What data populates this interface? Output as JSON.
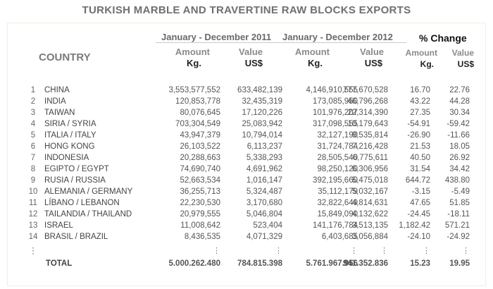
{
  "title": "TURKISH MARBLE AND TRAVERTINE RAW BLOCKS EXPORTS",
  "header": {
    "country": "COUNTRY",
    "period_2011": "January - December 2011",
    "period_2012": "January - December 2012",
    "pct_change": "% Change",
    "amount": "Amount",
    "value": "Value",
    "kg": "Kg.",
    "usd": "US$"
  },
  "rows": [
    {
      "n": "1",
      "country": "CHINA",
      "a2011": "3,553,577,552",
      "v2011": "633,482,139",
      "a2012": "4,146,910,555",
      "v2012": "777,670,528",
      "pa": "16.70",
      "pv": "22.76"
    },
    {
      "n": "2",
      "country": "INDIA",
      "a2011": "120,853,778",
      "v2011": "32,435,319",
      "a2012": "173,085,950",
      "v2012": "46,796,268",
      "pa": "43.22",
      "pv": "44.28"
    },
    {
      "n": "3",
      "country": "TAIWAN",
      "a2011": "80,076,645",
      "v2011": "17,120,226",
      "a2012": "101,976,207",
      "v2012": "22,314,390",
      "pa": "27.35",
      "pv": "30.34"
    },
    {
      "n": "4",
      "country": "SIRIA / SYRIA",
      "a2011": "703,304,549",
      "v2011": "25,083,942",
      "a2012": "317,098,555",
      "v2012": "10,179,643",
      "pa": "-54.91",
      "pv": "-59.42"
    },
    {
      "n": "5",
      "country": "ITALIA / ITALY",
      "a2011": "43,947,379",
      "v2011": "10,794,014",
      "a2012": "32,127,190",
      "v2012": "9,535,814",
      "pa": "-26.90",
      "pv": "-11.66"
    },
    {
      "n": "6",
      "country": "HONG KONG",
      "a2011": "26,103,522",
      "v2011": "6,113,237",
      "a2012": "31,724,784",
      "v2012": "7,216,428",
      "pa": "21.53",
      "pv": "18.05"
    },
    {
      "n": "7",
      "country": "INDONESIA",
      "a2011": "20,288,663",
      "v2011": "5,338,293",
      "a2012": "28,505,540",
      "v2012": "6,775,611",
      "pa": "40.50",
      "pv": "26.92"
    },
    {
      "n": "8",
      "country": "EGIPTO / EGYPT",
      "a2011": "74,690,740",
      "v2011": "4,691,962",
      "a2012": "98,250,120",
      "v2012": "6,306,956",
      "pa": "31.54",
      "pv": "34.42"
    },
    {
      "n": "9",
      "country": "RUSIA / RUSSIA",
      "a2011": "52,663,534",
      "v2011": "1,016,147",
      "a2012": "392,195,660",
      "v2012": "5,475,018",
      "pa": "644.72",
      "pv": "438.80"
    },
    {
      "n": "10",
      "country": "ALEMANIA / GERMANY",
      "a2011": "36,255,713",
      "v2011": "5,324,487",
      "a2012": "35,112,179",
      "v2012": "5,032,167",
      "pa": "-3.15",
      "pv": "-5.49"
    },
    {
      "n": "11",
      "country": "LÍBANO / LEBANON",
      "a2011": "22,230,530",
      "v2011": "3,170,680",
      "a2012": "32,822,649",
      "v2012": "4,814,631",
      "pa": "47.65",
      "pv": "51.85"
    },
    {
      "n": "12",
      "country": "TAILANDIA / THAILAND",
      "a2011": "20,979,555",
      "v2011": "5,046,804",
      "a2012": "15,849,090",
      "v2012": "4,132,622",
      "pa": "-24.45",
      "pv": "-18.11"
    },
    {
      "n": "13",
      "country": "ISRAEL",
      "a2011": "11,008,642",
      "v2011": "523,404",
      "a2012": "141,176,784",
      "v2012": "3,513,135",
      "pa": "1,182.42",
      "pv": "571.21"
    },
    {
      "n": "14",
      "country": "BRASIL / BRAZIL",
      "a2011": "8,436,535",
      "v2011": "4,071,329",
      "a2012": "6,403,685",
      "v2012": "3,056,884",
      "pa": "-24.10",
      "pv": "-24.92"
    }
  ],
  "ellipsis": "⋮",
  "total": {
    "label": "TOTAL",
    "a2011": "5.000.262.480",
    "v2011": "784.815.398",
    "a2012": "5.761.967.956",
    "v2012": "941.352.836",
    "pa": "15.23",
    "pv": "19.95"
  }
}
